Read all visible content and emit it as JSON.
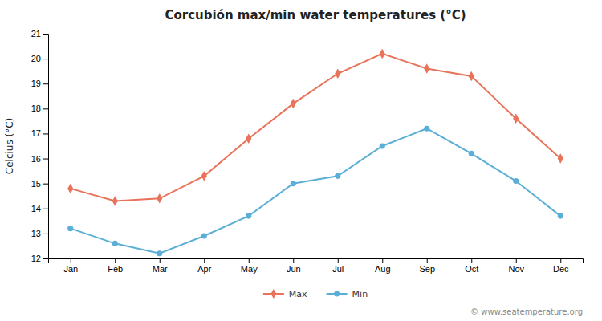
{
  "chart_data": {
    "type": "line",
    "title": "Corcubión max/min water temperatures (°C)",
    "ylabel": "Celcius (°C)",
    "categories": [
      "Jan",
      "Feb",
      "Mar",
      "Apr",
      "May",
      "Jun",
      "Jul",
      "Aug",
      "Sep",
      "Oct",
      "Nov",
      "Dec"
    ],
    "series": [
      {
        "name": "Max",
        "color": "#e8735a",
        "marker": "diamond",
        "values": [
          14.8,
          14.3,
          14.4,
          15.3,
          16.8,
          18.2,
          19.4,
          20.2,
          19.6,
          19.3,
          17.6,
          16.0
        ]
      },
      {
        "name": "Min",
        "color": "#5bafd6",
        "marker": "circle",
        "values": [
          13.2,
          12.6,
          12.2,
          12.9,
          13.7,
          15.0,
          15.3,
          16.5,
          17.2,
          16.2,
          15.1,
          13.7
        ]
      }
    ],
    "ylim": [
      12,
      21
    ],
    "yticks": [
      12,
      13,
      14,
      15,
      16,
      17,
      18,
      19,
      20,
      21
    ],
    "grid": false,
    "legend": "bottom",
    "annotations": [
      "© www.seatemperature.org"
    ]
  }
}
